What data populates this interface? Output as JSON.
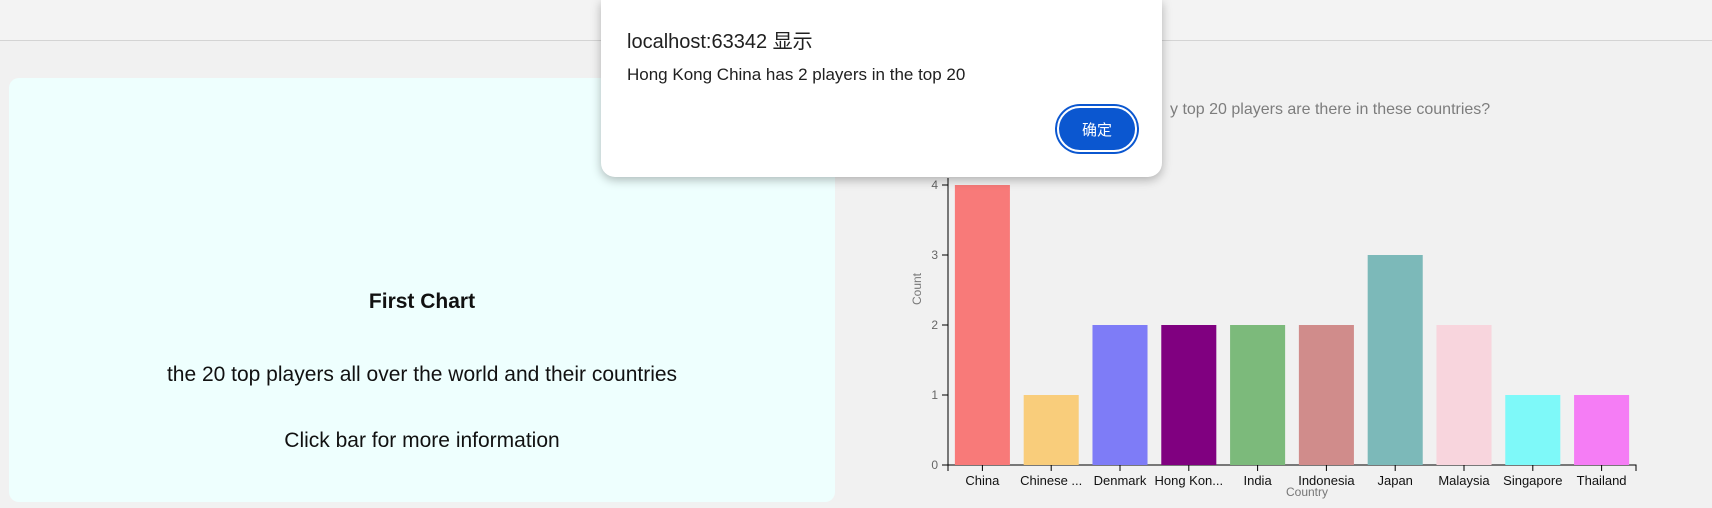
{
  "info": {
    "title": "First Chart",
    "description": "the 20 top players all over the world and their countries",
    "hint": "Click bar for more information"
  },
  "chart_question": "y top 20 players are there in these countries?",
  "dialog": {
    "title": "localhost:63342 显示",
    "message": "Hong Kong China has 2 players in the top 20",
    "ok_label": "确定"
  },
  "chart_data": {
    "type": "bar",
    "xlabel": "Country",
    "ylabel": "Count",
    "ylim": [
      0,
      4
    ],
    "yticks": [
      0,
      1,
      2,
      3,
      4
    ],
    "categories": [
      "China",
      "Chinese ...",
      "Denmark",
      "Hong Kon...",
      "India",
      "Indonesia",
      "Japan",
      "Malaysia",
      "Singapore",
      "Thailand"
    ],
    "values": [
      4,
      1,
      2,
      2,
      2,
      2,
      3,
      2,
      1,
      1
    ],
    "colors": [
      "#f87a79",
      "#f9cd7b",
      "#7e7cf7",
      "#800080",
      "#7cba7b",
      "#d08c8b",
      "#7cb9b9",
      "#f8d5dd",
      "#7ef9f9",
      "#f57df5"
    ]
  }
}
